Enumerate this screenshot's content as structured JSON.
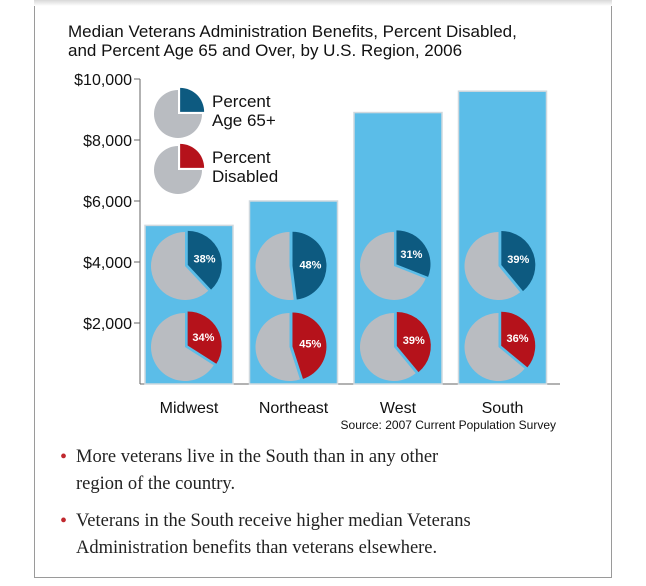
{
  "chart_data": {
    "type": "bar",
    "title_lines": [
      "Median Veterans Administration Benefits, Percent Disabled,",
      "and Percent Age 65 and Over, by U.S. Region, 2006"
    ],
    "categories": [
      "Midwest",
      "Northeast",
      "West",
      "South"
    ],
    "values": [
      5200,
      6000,
      8900,
      9600
    ],
    "ylim": [
      0,
      10000
    ],
    "yticks": [
      2000,
      4000,
      6000,
      8000,
      10000
    ],
    "ytick_labels": [
      "$2,000",
      "$4,000",
      "$6,000",
      "$8,000",
      "$10,000"
    ],
    "pie_series": [
      {
        "name": "Percent Age 65+",
        "values": [
          38,
          48,
          31,
          39
        ],
        "labels": [
          "38%",
          "48%",
          "31%",
          "39%"
        ],
        "color": "#0d5a80"
      },
      {
        "name": "Percent Disabled",
        "values": [
          34,
          45,
          39,
          36
        ],
        "labels": [
          "34%",
          "45%",
          "39%",
          "36%"
        ],
        "color": "#b5121b"
      }
    ],
    "legend": [
      {
        "lines": [
          "Percent",
          "Age 65+"
        ],
        "color": "#0d5a80"
      },
      {
        "lines": [
          "Percent",
          "Disabled"
        ],
        "color": "#b5121b"
      }
    ],
    "source": "Source: 2007 Current Population Survey",
    "bar_color": "#5bbde8",
    "pie_rest_color": "#b9bcc1"
  },
  "bullets": [
    {
      "lines": [
        "More veterans live in the South than in any other",
        "region of the country."
      ]
    },
    {
      "lines": [
        "Veterans in the South receive higher median Veterans",
        "Administration benefits than veterans elsewhere."
      ]
    }
  ]
}
